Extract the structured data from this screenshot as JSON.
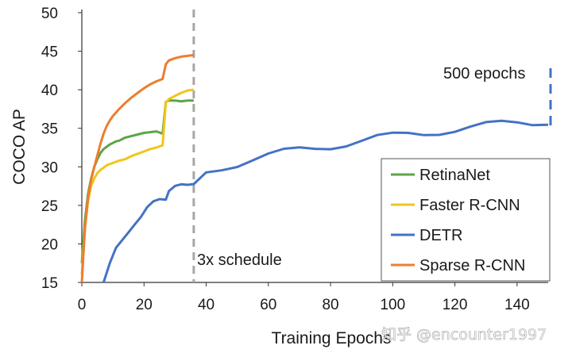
{
  "chart_data": {
    "type": "line",
    "title": "",
    "xlabel": "Training Epochs",
    "ylabel": "COCO AP",
    "xlim": [
      0,
      150
    ],
    "ylim": [
      15,
      50
    ],
    "xticks": [
      "0",
      "20",
      "40",
      "60",
      "80",
      "100",
      "120",
      "140"
    ],
    "yticks": [
      "15",
      "20",
      "25",
      "30",
      "35",
      "40",
      "45",
      "50"
    ],
    "grid": false,
    "legend_position": "bottom-right",
    "annotations": {
      "schedule_label": "3x schedule",
      "schedule_epoch": 36,
      "epochs500_label": "500 epochs"
    },
    "watermark": "知乎 @encounter1997",
    "series": [
      {
        "name": "RetinaNet",
        "color": "#5ba548",
        "x": [
          0,
          1,
          2,
          3,
          4,
          5,
          6,
          7,
          8,
          9,
          10,
          11,
          12,
          14,
          16,
          18,
          20,
          22,
          24,
          26,
          27,
          28,
          30,
          32,
          34,
          36
        ],
        "y": [
          17.5,
          23,
          26.5,
          28.5,
          30,
          31,
          31.8,
          32.3,
          32.6,
          32.9,
          33.1,
          33.3,
          33.4,
          33.8,
          34,
          34.2,
          34.4,
          34.5,
          34.6,
          34.3,
          38.4,
          38.6,
          38.6,
          38.5,
          38.6,
          38.6
        ]
      },
      {
        "name": "Faster R-CNN",
        "color": "#f2c51b",
        "x": [
          0,
          1,
          2,
          3,
          4,
          5,
          6,
          7,
          8,
          10,
          12,
          14,
          16,
          18,
          20,
          22,
          24,
          26,
          27,
          28,
          30,
          32,
          34,
          36
        ],
        "y": [
          16,
          22,
          25.5,
          27.5,
          28.5,
          29.2,
          29.6,
          29.9,
          30.2,
          30.5,
          30.8,
          31.0,
          31.4,
          31.7,
          32.0,
          32.3,
          32.5,
          32.8,
          38.3,
          38.8,
          39.2,
          39.6,
          39.9,
          40.0
        ]
      },
      {
        "name": "DETR",
        "color": "#4472c4",
        "x": [
          7,
          9,
          11,
          13,
          15,
          17,
          19,
          21,
          23,
          25,
          27,
          28,
          30,
          32,
          34,
          36,
          40,
          45,
          50,
          55,
          60,
          65,
          70,
          75,
          80,
          85,
          90,
          95,
          100,
          105,
          110,
          115,
          120,
          125,
          130,
          135,
          140,
          145,
          150
        ],
        "y": [
          15,
          17.5,
          19.5,
          20.5,
          21.5,
          22.5,
          23.5,
          24.3,
          25,
          25.6,
          26,
          26.4,
          27,
          27.5,
          27.9,
          28.3,
          29.3,
          30.0,
          30.5,
          31.0,
          31.4,
          31.8,
          32.2,
          32.5,
          32.8,
          33.1,
          33.4,
          33.7,
          33.9,
          34.2,
          34.4,
          34.7,
          34.9,
          35.1,
          35.3,
          35.5,
          35.7,
          35.8,
          36.0
        ]
      },
      {
        "name": "Sparse R-CNN",
        "color": "#ed7d31",
        "x": [
          0,
          1,
          2,
          3,
          4,
          5,
          6,
          7,
          8,
          9,
          10,
          12,
          14,
          16,
          18,
          20,
          22,
          24,
          26,
          27,
          28,
          30,
          32,
          34,
          36
        ],
        "y": [
          15,
          22,
          26,
          28.3,
          30,
          31.5,
          33,
          34.3,
          35.3,
          36,
          36.6,
          37.5,
          38.3,
          39.0,
          39.6,
          40.2,
          40.7,
          41.1,
          41.4,
          43.3,
          43.8,
          44.1,
          44.3,
          44.4,
          44.5
        ]
      }
    ]
  }
}
